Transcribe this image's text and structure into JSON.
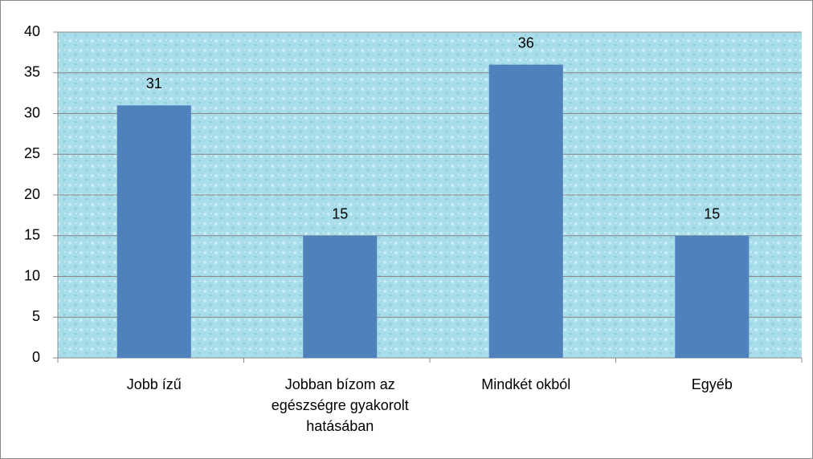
{
  "chart_data": {
    "type": "bar",
    "categories": [
      "Jobb ízű",
      "Jobban bízom az egészségre gyakorolt hatásában",
      "Mindkét okból",
      "Egyéb"
    ],
    "values": [
      31,
      15,
      36,
      15
    ],
    "color": "#4f81bd",
    "ylim": [
      0,
      40
    ],
    "yticks": [
      0,
      5,
      10,
      15,
      20,
      25,
      30,
      35,
      40
    ],
    "grid": true
  }
}
